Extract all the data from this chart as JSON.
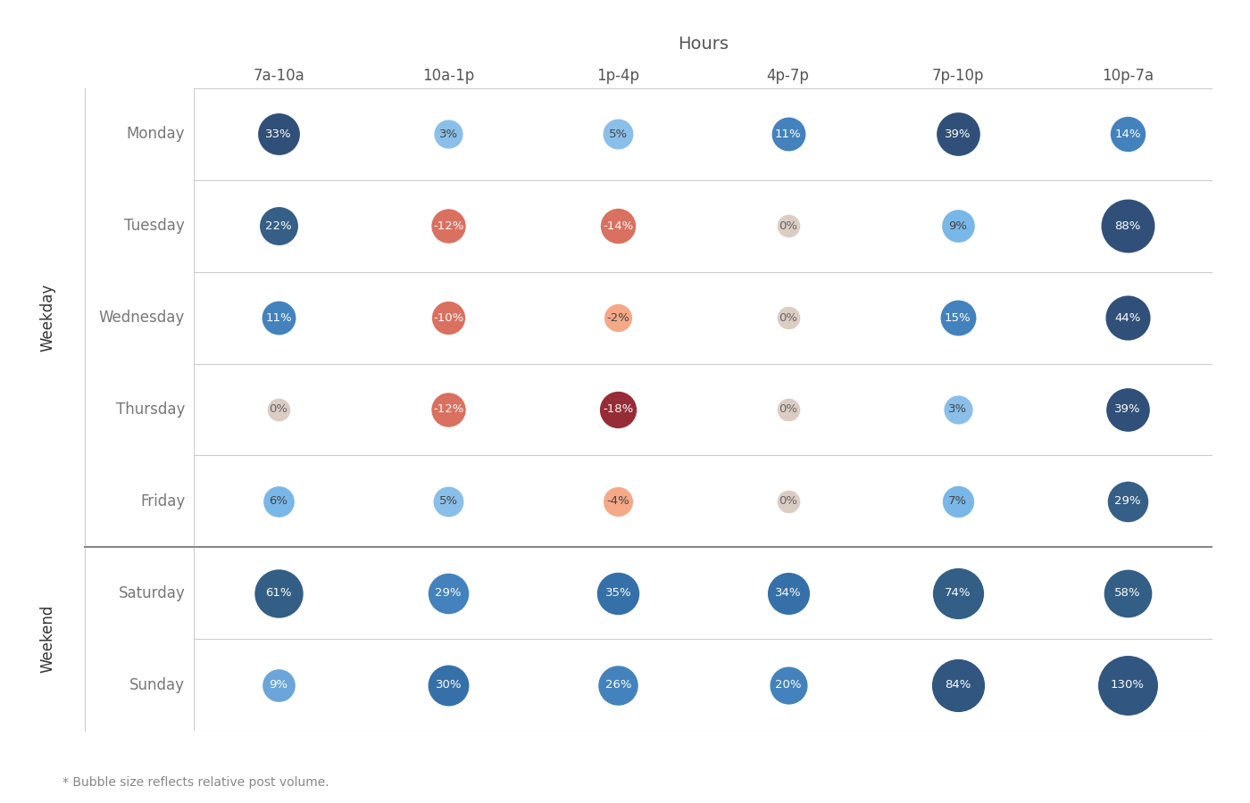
{
  "title": "Hours",
  "columns": [
    "7a-10a",
    "10a-1p",
    "1p-4p",
    "4p-7p",
    "7p-10p",
    "10p-7a"
  ],
  "rows": [
    "Monday",
    "Tuesday",
    "Wednesday",
    "Thursday",
    "Friday",
    "Saturday",
    "Sunday"
  ],
  "weekday_label": "Weekday",
  "weekend_label": "Weekend",
  "footnote": "* Bubble size reflects relative post volume.",
  "values": [
    [
      33,
      3,
      5,
      11,
      39,
      14
    ],
    [
      22,
      -12,
      -14,
      0,
      9,
      88
    ],
    [
      11,
      -10,
      -2,
      0,
      15,
      44
    ],
    [
      0,
      -12,
      -18,
      0,
      3,
      39
    ],
    [
      6,
      5,
      -4,
      0,
      7,
      29
    ],
    [
      61,
      29,
      35,
      34,
      74,
      58
    ],
    [
      9,
      30,
      26,
      20,
      84,
      130
    ]
  ],
  "bubble_sizes": [
    [
      33,
      3,
      5,
      11,
      39,
      14
    ],
    [
      22,
      12,
      14,
      0,
      9,
      88
    ],
    [
      11,
      10,
      2,
      0,
      15,
      44
    ],
    [
      0,
      12,
      18,
      0,
      3,
      39
    ],
    [
      6,
      5,
      4,
      0,
      7,
      29
    ],
    [
      61,
      29,
      35,
      34,
      74,
      58
    ],
    [
      9,
      30,
      26,
      20,
      84,
      130
    ]
  ],
  "background_color": "#ffffff",
  "grid_color": "#cccccc",
  "separator_color": "#888888",
  "text_color_dark": "#555555",
  "text_color_light": "#ffffff",
  "col_header_color": "#555555",
  "row_label_color": "#777777",
  "section_label_color": "#333333"
}
